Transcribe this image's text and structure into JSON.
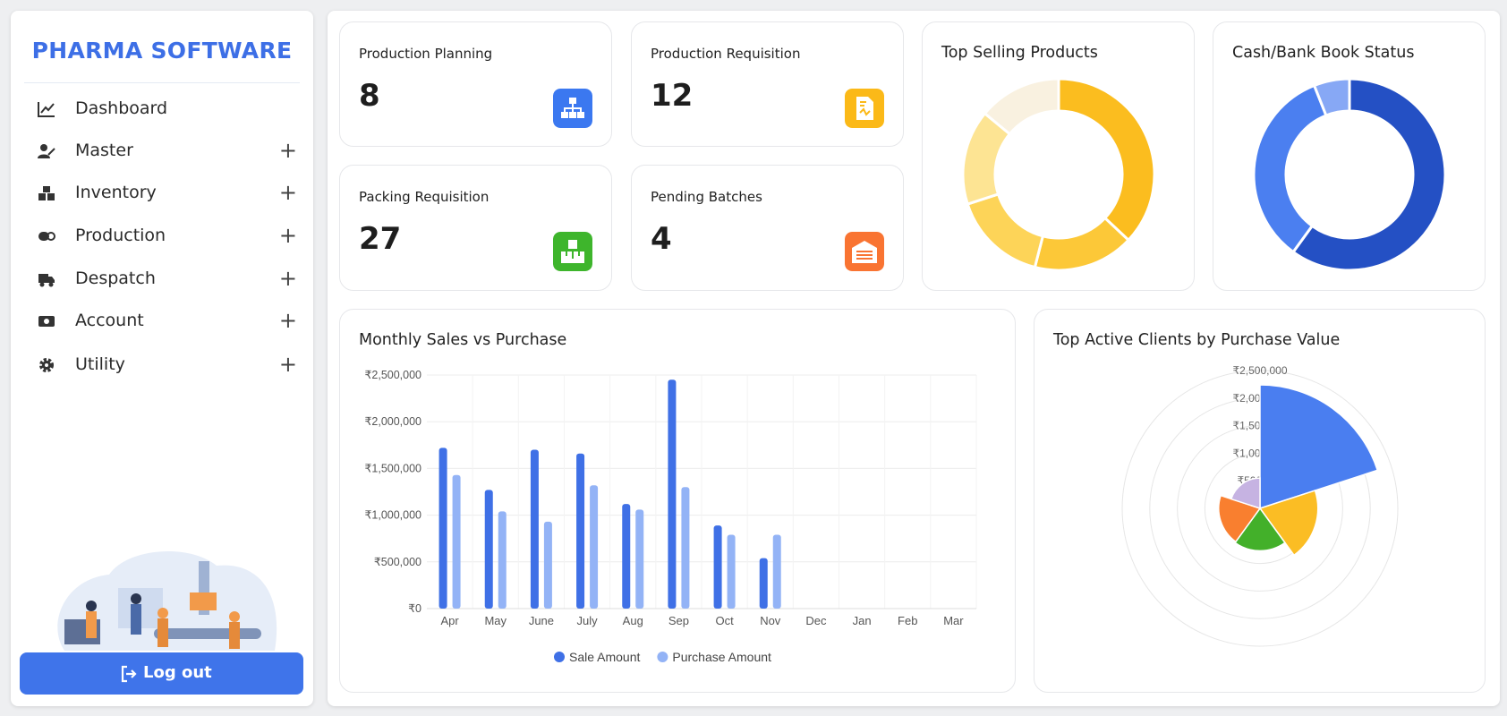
{
  "sidebar": {
    "brand": "PHARMA SOFTWARE",
    "menu": [
      "Dashboard",
      "Master",
      "Inventory",
      "Production",
      "Despatch",
      "Account",
      "Utility"
    ],
    "logout": "Log out"
  },
  "cards": [
    {
      "title": "Production Planning",
      "value": 8
    },
    {
      "title": "Production Requisition",
      "value": 12
    },
    {
      "title": "Packing Requisition",
      "value": 27
    },
    {
      "title": "Pending Batches",
      "value": 4
    }
  ],
  "chart_data": [
    {
      "type": "doughnut",
      "title": "Top Selling Products",
      "values": [
        37,
        17,
        16,
        16,
        14
      ],
      "colors": [
        "#fbbd1f",
        "#fcc838",
        "#fdd458",
        "#fde493",
        "#f9f1e0"
      ]
    },
    {
      "type": "doughnut",
      "title": "Cash/Bank Book Status",
      "values": [
        60,
        34,
        6
      ],
      "colors": [
        "#2450c4",
        "#4b7ff0",
        "#87a8f5"
      ]
    },
    {
      "type": "bar",
      "title": "Monthly Sales vs Purchase",
      "categories": [
        "Apr",
        "May",
        "June",
        "July",
        "Aug",
        "Sep",
        "Oct",
        "Nov",
        "Dec",
        "Jan",
        "Feb",
        "Mar"
      ],
      "series": [
        {
          "name": "Sale Amount",
          "color": "#3f70e6",
          "values": [
            1720000,
            1270000,
            1700000,
            1660000,
            1120000,
            2450000,
            890000,
            540000,
            null,
            null,
            null,
            null
          ]
        },
        {
          "name": "Purchase Amount",
          "color": "#93b3f6",
          "values": [
            1430000,
            1040000,
            930000,
            1320000,
            1060000,
            1300000,
            790000,
            790000,
            null,
            null,
            null,
            null
          ]
        }
      ],
      "ylim": [
        0,
        2500000
      ],
      "yticks": [
        {
          "value": 0,
          "label": "₹0"
        },
        {
          "value": 500000,
          "label": "₹500,000"
        },
        {
          "value": 1000000,
          "label": "₹1,000,000"
        },
        {
          "value": 1500000,
          "label": "₹1,500,000"
        },
        {
          "value": 2000000,
          "label": "₹2,000,000"
        },
        {
          "value": 2500000,
          "label": "₹2,500,000"
        }
      ],
      "grid": true,
      "legend": "bottom"
    },
    {
      "type": "polarArea",
      "title": "Top Active Clients by Purchase Value",
      "values": [
        2240000,
        1050000,
        770000,
        750000,
        550000
      ],
      "colors": [
        "#4a7ef0",
        "#fbbd24",
        "#43b02a",
        "#f97f2f",
        "#c6b3e2"
      ],
      "rlim": [
        0,
        2500000
      ],
      "rticks": [
        {
          "value": 500000,
          "label": "₹500,000"
        },
        {
          "value": 1000000,
          "label": "₹1,000,000"
        },
        {
          "value": 1500000,
          "label": "₹1,500,000"
        },
        {
          "value": 2000000,
          "label": "₹2,000,000"
        },
        {
          "value": 2500000,
          "label": "₹2,500,000"
        }
      ]
    }
  ]
}
